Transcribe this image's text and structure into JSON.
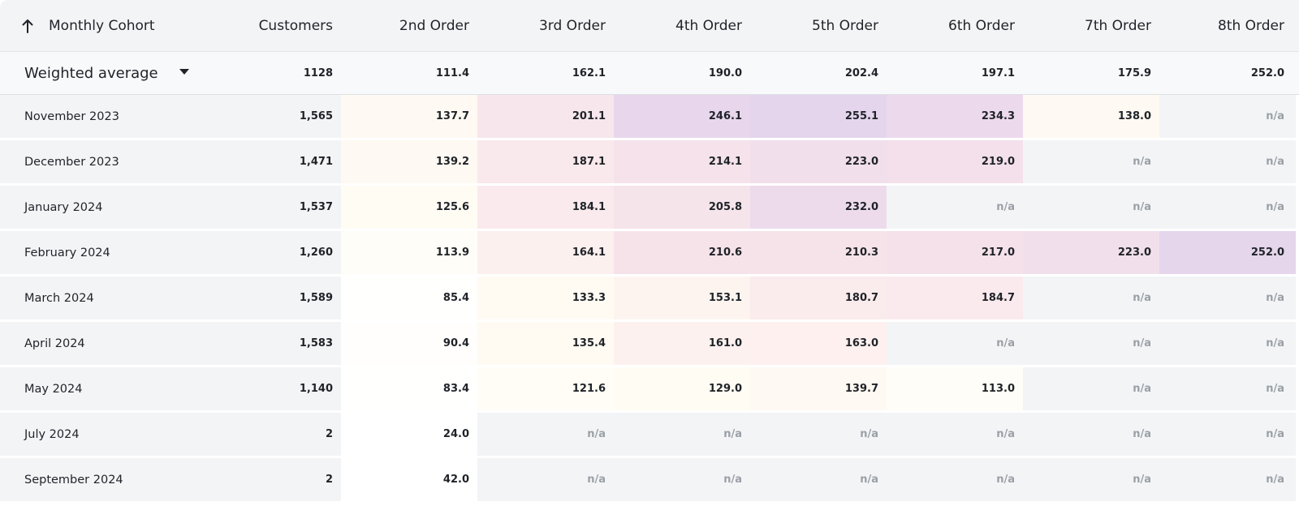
{
  "table": {
    "sort_direction": "ascending",
    "headers": [
      "Monthly Cohort",
      "Customers",
      "2nd Order",
      "3rd Order",
      "4th Order",
      "5th Order",
      "6th Order",
      "7th Order",
      "8th Order"
    ],
    "summary": {
      "label": "Weighted average",
      "values": [
        "1128",
        "111.4",
        "162.1",
        "190.0",
        "202.4",
        "197.1",
        "175.9",
        "252.0"
      ]
    },
    "rows": [
      {
        "cohort": "November 2023",
        "customers": "1,565",
        "values": [
          "137.7",
          "201.1",
          "246.1",
          "255.1",
          "234.3",
          "138.0",
          "n/a"
        ]
      },
      {
        "cohort": "December 2023",
        "customers": "1,471",
        "values": [
          "139.2",
          "187.1",
          "214.1",
          "223.0",
          "219.0",
          "n/a",
          "n/a"
        ]
      },
      {
        "cohort": "January 2024",
        "customers": "1,537",
        "values": [
          "125.6",
          "184.1",
          "205.8",
          "232.0",
          "n/a",
          "n/a",
          "n/a"
        ]
      },
      {
        "cohort": "February 2024",
        "customers": "1,260",
        "values": [
          "113.9",
          "164.1",
          "210.6",
          "210.3",
          "217.0",
          "223.0",
          "252.0"
        ]
      },
      {
        "cohort": "March 2024",
        "customers": "1,589",
        "values": [
          "85.4",
          "133.3",
          "153.1",
          "180.7",
          "184.7",
          "n/a",
          "n/a"
        ]
      },
      {
        "cohort": "April 2024",
        "customers": "1,583",
        "values": [
          "90.4",
          "135.4",
          "161.0",
          "163.0",
          "n/a",
          "n/a",
          "n/a"
        ]
      },
      {
        "cohort": "May 2024",
        "customers": "1,140",
        "values": [
          "83.4",
          "121.6",
          "129.0",
          "139.7",
          "113.0",
          "n/a",
          "n/a"
        ]
      },
      {
        "cohort": "July 2024",
        "customers": "2",
        "values": [
          "24.0",
          "n/a",
          "n/a",
          "n/a",
          "n/a",
          "n/a",
          "n/a"
        ]
      },
      {
        "cohort": "September 2024",
        "customers": "2",
        "values": [
          "42.0",
          "n/a",
          "n/a",
          "n/a",
          "n/a",
          "n/a",
          "n/a"
        ]
      }
    ]
  }
}
